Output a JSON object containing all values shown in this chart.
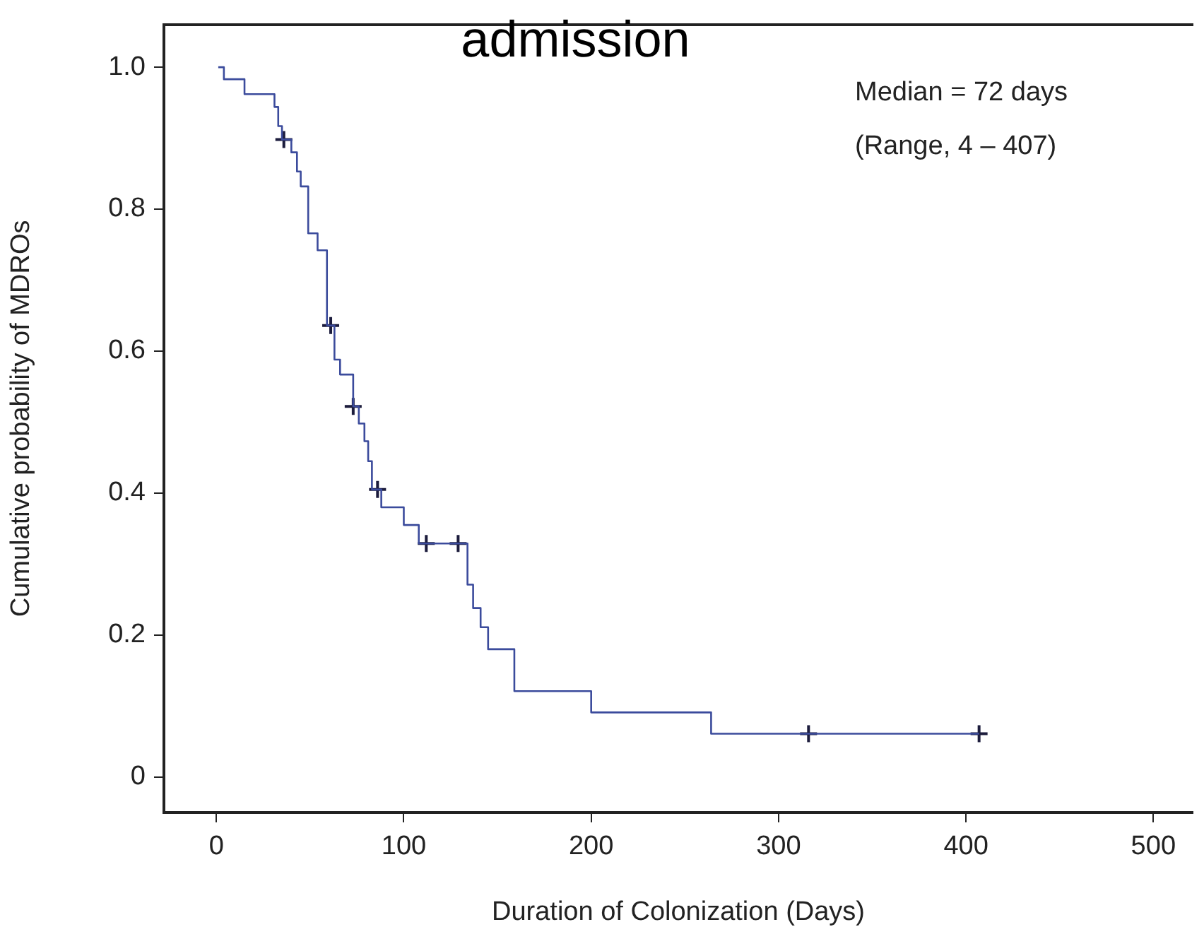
{
  "chart_data": {
    "type": "step",
    "title": "admission",
    "xlabel": "Duration of Colonization (Days)",
    "ylabel": "Cumulative probability of MDROs",
    "annotations": [
      "Median = 72 days",
      "(Range, 4 – 407)"
    ],
    "xlim": [
      -28,
      521
    ],
    "xticks": [
      0,
      100,
      200,
      300,
      400,
      500
    ],
    "ylim": [
      -0.05,
      1.06
    ],
    "yticks": [
      0,
      0.2,
      0.4,
      0.6,
      0.8,
      {
        "value": 1,
        "label": "1.0"
      }
    ],
    "grid": false,
    "legend": false,
    "marker": "none",
    "line_style": "solid",
    "series": [
      {
        "color": "#3b4b9c",
        "x": [
          1,
          4,
          15,
          31,
          33,
          35,
          40,
          43,
          45,
          49,
          54,
          59,
          63,
          66,
          73,
          76,
          79,
          81,
          83,
          88,
          100,
          108,
          134,
          137,
          141,
          145,
          159,
          200,
          264,
          407
        ],
        "values": [
          1,
          0.983,
          0.962,
          0.944,
          0.917,
          0.898,
          0.88,
          0.853,
          0.832,
          0.766,
          0.742,
          0.636,
          0.588,
          0.567,
          0.522,
          0.498,
          0.473,
          0.445,
          0.405,
          0.38,
          0.355,
          0.329,
          0.271,
          0.238,
          0.211,
          0.18,
          0.121,
          0.091,
          0.061,
          0.061
        ]
      },
      {
        "type": "scatter",
        "color": "#1c1c3c",
        "marker": "cross",
        "x": [
          36,
          61,
          73,
          86,
          112,
          129,
          316,
          407
        ],
        "values": [
          0.898,
          0.636,
          0.522,
          0.405,
          0.329,
          0.329,
          0.061,
          0.061
        ]
      }
    ]
  }
}
